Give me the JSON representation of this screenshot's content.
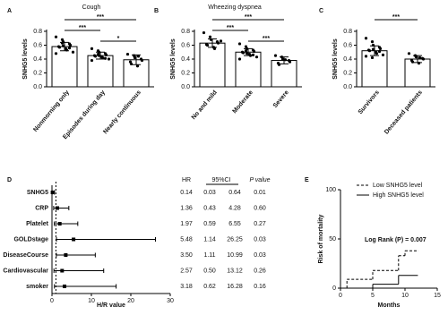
{
  "chart_data": [
    {
      "type": "bar",
      "panel": "A",
      "title": "Cough",
      "ylabel": "SNHG5 levels",
      "categories": [
        "Nonmorning only",
        "Episodes during day",
        "Nearly continuous"
      ],
      "values": [
        0.58,
        0.45,
        0.39
      ],
      "errors": [
        0.06,
        0.05,
        0.07
      ],
      "points": [
        [
          0.72,
          0.68,
          0.65,
          0.62,
          0.6,
          0.58,
          0.57,
          0.55,
          0.53,
          0.5,
          0.48,
          0.63,
          0.59,
          0.56
        ],
        [
          0.55,
          0.52,
          0.5,
          0.48,
          0.46,
          0.45,
          0.44,
          0.43,
          0.42,
          0.4,
          0.38,
          0.47,
          0.45,
          0.41
        ],
        [
          0.47,
          0.45,
          0.42,
          0.4,
          0.38,
          0.36,
          0.33,
          0.3,
          0.44
        ]
      ],
      "color": "#ffffff",
      "ylim": [
        0,
        0.8
      ],
      "yticks": [
        {
          "value": 0,
          "label": "0.0"
        },
        0.2,
        0.4,
        0.6,
        0.8
      ],
      "significance": [
        {
          "pair": [
            "Nonmorning only",
            "Nearly continuous"
          ],
          "label": "***"
        },
        {
          "pair": [
            "Nonmorning only",
            "Episodes during day"
          ],
          "label": "***"
        },
        {
          "pair": [
            "Episodes during day",
            "Nearly continuous"
          ],
          "label": "*"
        }
      ]
    },
    {
      "type": "bar",
      "panel": "B",
      "title": "Wheezing dyspnea",
      "ylabel": "SNHG5 levels",
      "categories": [
        "No and mild",
        "Moderate",
        "Severe"
      ],
      "values": [
        0.63,
        0.5,
        0.38
      ],
      "errors": [
        0.06,
        0.05,
        0.05
      ],
      "points": [
        [
          0.78,
          0.72,
          0.68,
          0.65,
          0.63,
          0.61,
          0.6,
          0.57,
          0.55,
          0.66
        ],
        [
          0.62,
          0.58,
          0.55,
          0.53,
          0.51,
          0.5,
          0.49,
          0.47,
          0.45,
          0.43,
          0.4,
          0.52,
          0.48,
          0.46
        ],
        [
          0.45,
          0.43,
          0.4,
          0.38,
          0.36,
          0.34,
          0.32,
          0.39
        ]
      ],
      "color": "#ffffff",
      "ylim": [
        0,
        0.8
      ],
      "yticks": [
        {
          "value": 0,
          "label": "0.0"
        },
        0.2,
        0.4,
        0.6,
        0.8
      ],
      "significance": [
        {
          "pair": [
            "No and mild",
            "Severe"
          ],
          "label": "***"
        },
        {
          "pair": [
            "No and mild",
            "Moderate"
          ],
          "label": "***"
        },
        {
          "pair": [
            "Moderate",
            "Severe"
          ],
          "label": "***"
        }
      ]
    },
    {
      "type": "bar",
      "panel": "C",
      "ylabel": "SNHG5 levels",
      "categories": [
        "Survivors",
        "Deceased patients"
      ],
      "values": [
        0.52,
        0.4
      ],
      "errors": [
        0.07,
        0.05
      ],
      "points": [
        [
          0.7,
          0.65,
          0.6,
          0.57,
          0.55,
          0.53,
          0.52,
          0.5,
          0.48,
          0.46,
          0.44,
          0.42,
          0.54,
          0.51
        ],
        [
          0.48,
          0.45,
          0.43,
          0.41,
          0.4,
          0.38,
          0.36,
          0.34,
          0.42
        ]
      ],
      "color": "#ffffff",
      "ylim": [
        0,
        0.8
      ],
      "yticks": [
        {
          "value": 0,
          "label": "0.0"
        },
        0.2,
        0.4,
        0.6,
        0.8
      ],
      "significance": [
        {
          "pair": [
            "Survivors",
            "Deceased patients"
          ],
          "label": "***"
        }
      ]
    },
    {
      "type": "forest",
      "panel": "D",
      "xlabel": "H/R value",
      "categories": [
        "SNHG5",
        "CRP",
        "Platelet",
        "GOLDstage",
        "DiseaseCourse",
        "Cardiovascular",
        "smoker"
      ],
      "hr": [
        0.14,
        1.36,
        1.97,
        5.48,
        3.5,
        2.57,
        3.18
      ],
      "ci_low": [
        0.03,
        0.43,
        0.59,
        1.14,
        1.11,
        0.5,
        0.62
      ],
      "ci_high": [
        0.64,
        4.28,
        6.55,
        26.25,
        10.99,
        13.12,
        16.28
      ],
      "hr_labels": [
        "0.14",
        "1.36",
        "1.97",
        "5.48",
        "3.50",
        "2.57",
        "3.18"
      ],
      "ci_low_labels": [
        "0.03",
        "0.43",
        "0.59",
        "1.14",
        "1.11",
        "0.50",
        "0.62"
      ],
      "ci_high_labels": [
        "0.64",
        "4.28",
        "6.55",
        "26.25",
        "10.99",
        "13.12",
        "16.28"
      ],
      "p_values": [
        "0.01",
        "0.60",
        "0.27",
        "0.03",
        "0.03",
        "0.26",
        "0.16"
      ],
      "columns": [
        "HR",
        "95%CI",
        "P value"
      ],
      "reference": 1,
      "xlim": [
        0,
        30
      ],
      "xticks": [
        0,
        10,
        20,
        30
      ]
    },
    {
      "type": "step",
      "panel": "E",
      "xlabel": "Months",
      "ylabel": "Risk of mortality",
      "annotation": "Log Rank (P) = 0.007",
      "series": [
        {
          "name": "Low SNHG5 level",
          "dash": true,
          "x": [
            0,
            1,
            5,
            9,
            10,
            12
          ],
          "values": [
            0,
            9,
            18,
            33,
            38,
            38
          ]
        },
        {
          "name": "High SNHG5 level",
          "dash": false,
          "x": [
            0,
            5,
            9,
            12
          ],
          "values": [
            0,
            4,
            13,
            13
          ]
        }
      ],
      "xlim": [
        0,
        15
      ],
      "xticks": [
        0,
        5,
        10,
        15
      ],
      "ylim": [
        0,
        100
      ],
      "yticks": [
        0,
        50,
        100
      ]
    }
  ]
}
